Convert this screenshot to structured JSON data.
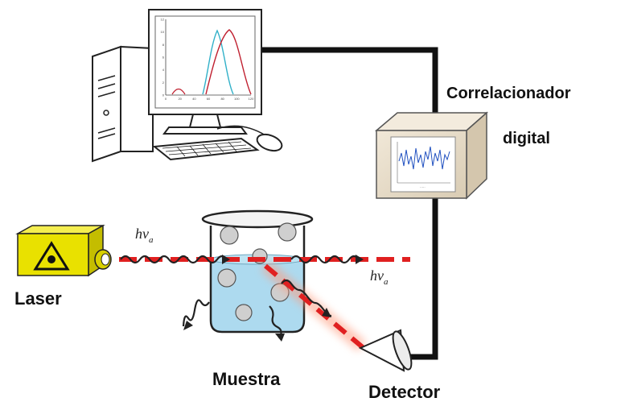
{
  "labels": {
    "correlator_line1": "Correlacionador",
    "correlator_line2": "digital",
    "laser": "Laser",
    "sample": "Muestra",
    "detector": "Detector",
    "photon_in": "hv",
    "photon_in_sub": "a",
    "photon_out": "hv",
    "photon_out_sub": "a"
  },
  "monitor_plot": {
    "x_ticks": [
      "0",
      "20",
      "40",
      "60",
      "80",
      "100",
      "120"
    ],
    "y_ticks": [
      "0",
      "2",
      "4",
      "6",
      "8",
      "10",
      "12"
    ]
  },
  "colors": {
    "laser_body": "#e9e100",
    "laser_beam": "#e02020",
    "beam_glow": "#ff9a7a",
    "cable": "#111111",
    "liquid": "#9fd4ec",
    "correlator_box": "#e8dcc8",
    "plot_red": "#c02030",
    "plot_cyan": "#30b0c8",
    "signal_blue": "#2050c0"
  }
}
